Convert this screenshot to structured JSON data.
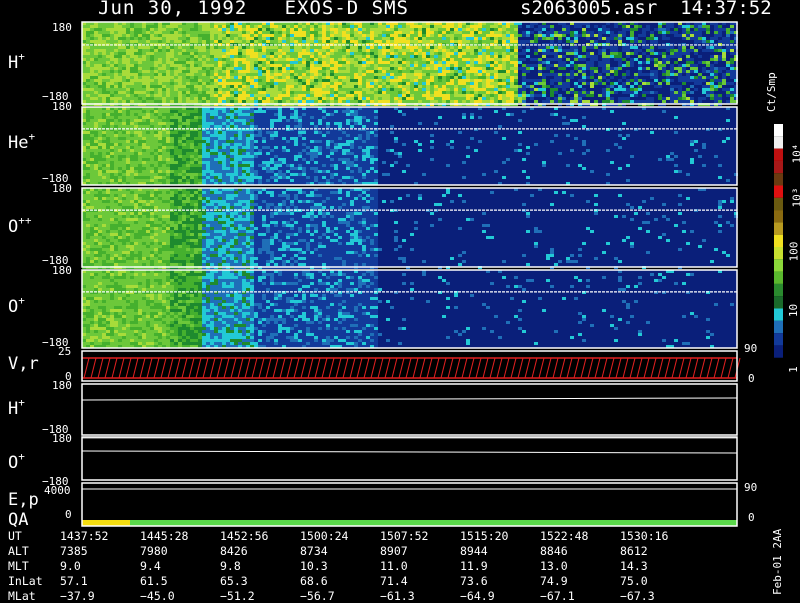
{
  "header": {
    "date": "Jun 30, 1992",
    "instrument": "EXOS-D SMS",
    "file": "s2063005.asr",
    "time": "14:37:52"
  },
  "panels": {
    "h_plus": {
      "species": "H",
      "charge": "+",
      "ymax": "180",
      "ymin": "−180"
    },
    "he_plus": {
      "species": "He",
      "charge": "+",
      "ymax": "180",
      "ymin": "−180"
    },
    "o_pp": {
      "species": "O",
      "charge": "++",
      "ymax": "180",
      "ymin": "−180"
    },
    "o_plus": {
      "species": "O",
      "charge": "+",
      "ymax": "180",
      "ymin": "−180"
    },
    "vr": {
      "label": "V,r",
      "left_top": "25",
      "left_bottom": "0",
      "right_top": "90",
      "right_bottom": "0"
    },
    "h_plus_2": {
      "species": "H",
      "charge": "+",
      "ymax": "180",
      "ymin": "−180"
    },
    "o_plus_2": {
      "species": "O",
      "charge": "+",
      "ymax": "180",
      "ymin": "−180"
    },
    "ep": {
      "label": "E,p",
      "left_top": "4000",
      "right_top": "90"
    },
    "qa": {
      "label": "QA",
      "left_bottom": "0",
      "right_bottom": "0"
    }
  },
  "colorbar": {
    "unit": "Ct/Smp",
    "labels": [
      "10⁴",
      "10³",
      "100",
      "10",
      "1"
    ]
  },
  "table": {
    "rows": [
      {
        "label": "UT",
        "values": [
          "1437:52",
          "1445:28",
          "1452:56",
          "1500:24",
          "1507:52",
          "1515:20",
          "1522:48",
          "1530:16"
        ]
      },
      {
        "label": "ALT",
        "values": [
          "7385",
          "7980",
          "8426",
          "8734",
          "8907",
          "8944",
          "8846",
          "8612"
        ]
      },
      {
        "label": "MLT",
        "values": [
          "9.0",
          "9.4",
          "9.8",
          "10.3",
          "11.0",
          "11.9",
          "13.0",
          "14.3"
        ]
      },
      {
        "label": "InLat",
        "values": [
          "57.1",
          "61.5",
          "65.3",
          "68.6",
          "71.4",
          "73.6",
          "74.9",
          "75.0"
        ]
      },
      {
        "label": "MLat",
        "values": [
          "−37.9",
          "−45.0",
          "−51.2",
          "−56.7",
          "−61.3",
          "−64.9",
          "−67.1",
          "−67.3"
        ]
      }
    ]
  },
  "footer": {
    "stamp": "Feb-01 2AA"
  },
  "chart_data": {
    "type": "heatmap",
    "title": "Jun 30, 1992   EXOS-D SMS",
    "subtitle": "s2063005.asr  14:37:52",
    "x_ticks": [
      "1437:52",
      "1445:28",
      "1452:56",
      "1500:24",
      "1507:52",
      "1515:20",
      "1522:48",
      "1530:16"
    ],
    "y_range": [
      -180,
      180
    ],
    "color_scale": "log",
    "color_range": [
      1,
      10000
    ],
    "color_unit": "Ct/Smp",
    "series": [
      {
        "name": "H+"
      },
      {
        "name": "He+"
      },
      {
        "name": "O++"
      },
      {
        "name": "O+"
      }
    ],
    "colors": {
      "background": "#000000",
      "low": "#0a1f7a",
      "mid_low": "#1f6fb8",
      "cyan": "#22c9d6",
      "green_dark": "#1e8a2e",
      "green": "#6cc83a",
      "yellow": "#f0e020",
      "brown": "#8a5a1a",
      "red": "#e01010",
      "white": "#ffffff",
      "qa_good": "#5ad84a",
      "qa_warn": "#f5dd10"
    }
  }
}
